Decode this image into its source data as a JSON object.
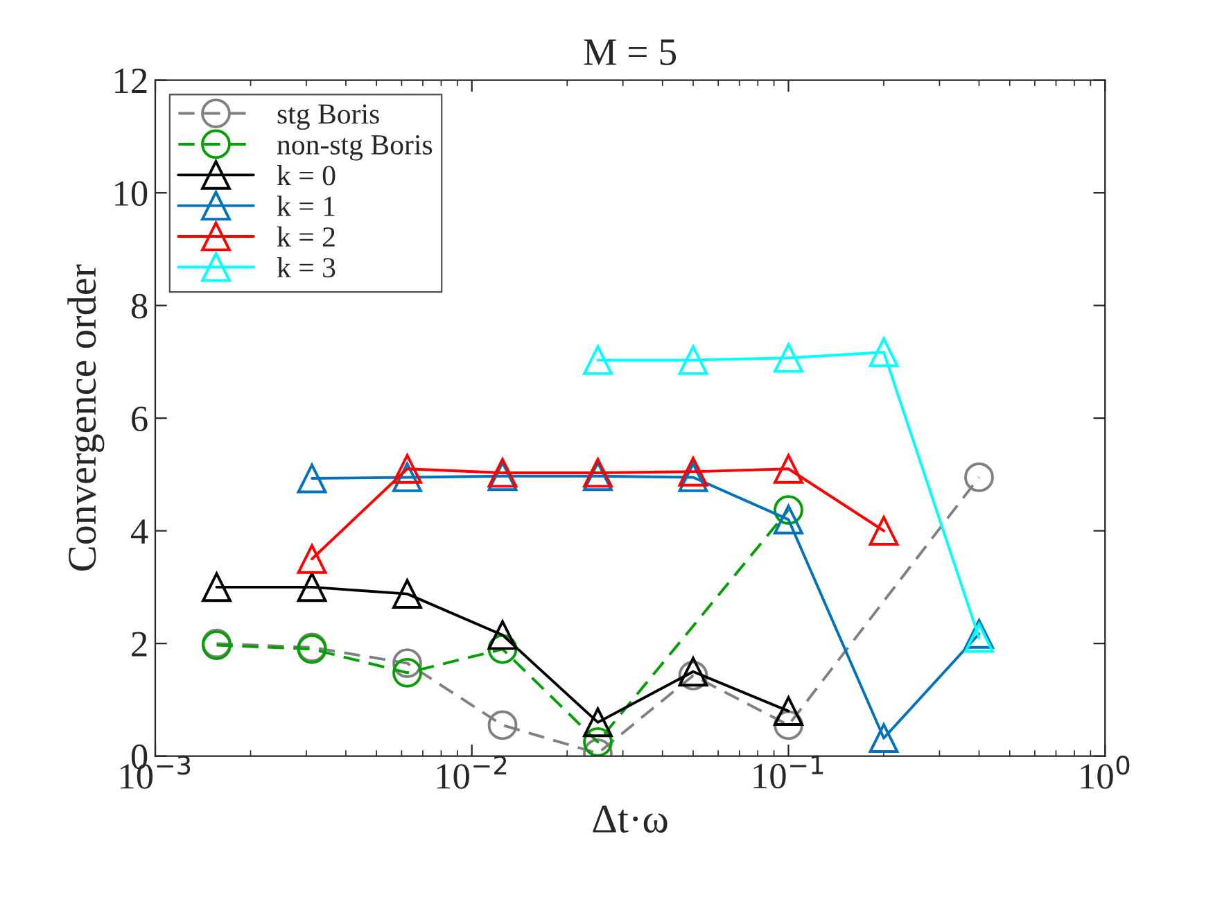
{
  "chart_data": {
    "type": "line",
    "title": "M = 5",
    "xlabel": "Δt·ω",
    "ylabel": "Convergence order",
    "log": "x",
    "xlim": [
      0.001,
      1
    ],
    "xticks": [
      {
        "value": 0.001,
        "label": "10$^{−3}$"
      },
      {
        "value": 0.01,
        "label": "10$^{−2}$"
      },
      {
        "value": 0.1,
        "label": "10$^{−1}$"
      },
      {
        "value": 1,
        "label": "10$^{0}$"
      }
    ],
    "ylim": [
      0,
      12
    ],
    "yticks": [
      0,
      2,
      4,
      6,
      8,
      10,
      12
    ],
    "grid": false,
    "legend": "top left",
    "series": [
      {
        "name": "stg Boris",
        "color": "#808080",
        "marker": "circle",
        "line_style": "dashed",
        "x": [
          0.0015625,
          0.003125,
          0.00625,
          0.0125,
          0.025,
          0.05,
          0.1,
          0.4
        ],
        "values": [
          2.0,
          1.93,
          1.65,
          0.55,
          0.05,
          1.43,
          0.55,
          4.95
        ]
      },
      {
        "name": "non-stg Boris",
        "color": "#00a000",
        "marker": "circle",
        "line_style": "dashed",
        "x": [
          0.0015625,
          0.003125,
          0.00625,
          0.0125,
          0.025,
          0.1
        ],
        "values": [
          1.97,
          1.9,
          1.48,
          1.9,
          0.25,
          4.37
        ]
      },
      {
        "name": "k = 0",
        "color": "#000000",
        "marker": "triangle",
        "line_style": "solid",
        "x": [
          0.0015625,
          0.003125,
          0.00625,
          0.0125,
          0.025,
          0.05,
          0.1
        ],
        "values": [
          3.0,
          3.0,
          2.88,
          2.15,
          0.6,
          1.5,
          0.8
        ]
      },
      {
        "name": "k = 1",
        "color": "#0072bd",
        "marker": "triangle",
        "line_style": "solid",
        "x": [
          0.003125,
          0.00625,
          0.0125,
          0.025,
          0.05,
          0.1,
          0.2,
          0.4
        ],
        "values": [
          4.93,
          4.95,
          4.97,
          4.97,
          4.95,
          4.2,
          0.32,
          2.17
        ]
      },
      {
        "name": "k = 2",
        "color": "#ff0000",
        "marker": "triangle",
        "line_style": "solid",
        "x": [
          0.003125,
          0.00625,
          0.0125,
          0.025,
          0.05,
          0.1,
          0.2
        ],
        "values": [
          3.5,
          5.1,
          5.03,
          5.03,
          5.05,
          5.1,
          4.0
        ]
      },
      {
        "name": "k = 3",
        "color": "#00ffff",
        "marker": "triangle",
        "line_style": "solid",
        "x": [
          0.025,
          0.05,
          0.1,
          0.2,
          0.4
        ],
        "values": [
          7.03,
          7.03,
          7.07,
          7.17,
          2.1
        ]
      }
    ]
  }
}
